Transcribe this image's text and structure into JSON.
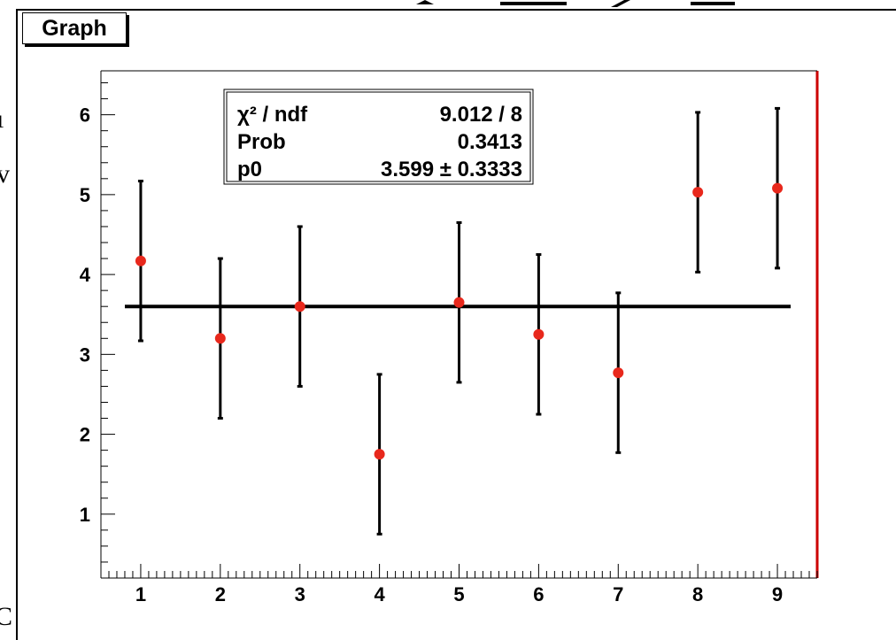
{
  "title": "Graph",
  "stats": {
    "chi2_ndf_label": "χ² / ndf",
    "chi2_ndf_value": "9.012 / 8",
    "prob_label": "Prob",
    "prob_value": "0.3413",
    "p0_label": "p0",
    "p0_value": "3.599 ± 0.3333"
  },
  "colors": {
    "marker": "#e8281c",
    "error_bar": "#000000",
    "fit_line": "#000000",
    "frame_right": "#cc0000"
  },
  "chart_data": {
    "type": "scatter",
    "x": [
      1,
      2,
      3,
      4,
      5,
      6,
      7,
      8,
      9
    ],
    "y": [
      4.17,
      3.2,
      3.6,
      1.75,
      3.65,
      3.25,
      2.77,
      5.03,
      5.08
    ],
    "y_error": [
      1.0,
      1.0,
      1.0,
      1.0,
      1.0,
      1.0,
      1.0,
      1.0,
      1.0
    ],
    "fit": {
      "type": "constant",
      "value": 3.599
    },
    "xlim": [
      0.5,
      9.5
    ],
    "ylim": [
      0.2,
      6.55
    ],
    "xticks": [
      "1",
      "2",
      "3",
      "4",
      "5",
      "6",
      "7",
      "8",
      "9"
    ],
    "yticks": [
      "1",
      "2",
      "3",
      "4",
      "5",
      "6"
    ],
    "grid": false
  }
}
